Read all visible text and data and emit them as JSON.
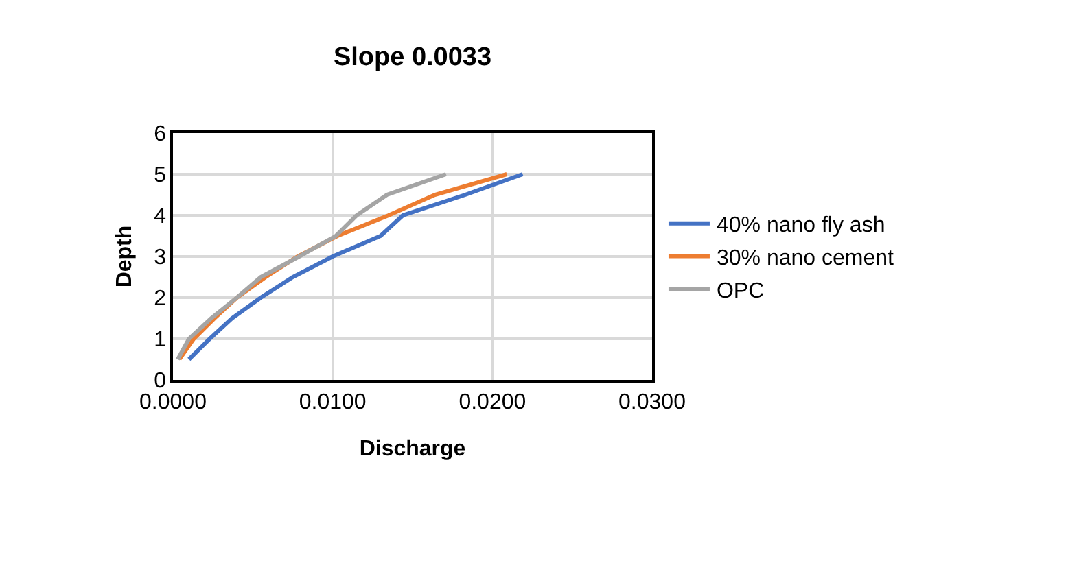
{
  "chart_data": {
    "type": "line",
    "title": "Slope 0.0033",
    "xlabel": "Discharge",
    "ylabel": "Depth",
    "xlim": [
      0,
      0.03
    ],
    "xticks": [
      {
        "value": 0,
        "label": "0.0000"
      },
      {
        "value": 0.01,
        "label": "0.0100"
      },
      {
        "value": 0.02,
        "label": "0.0200"
      },
      {
        "value": 0.03,
        "label": "0.0300"
      }
    ],
    "ylim": [
      0,
      6
    ],
    "yticks": [
      0,
      1,
      2,
      3,
      4,
      5,
      6
    ],
    "grid": true,
    "legend": "right",
    "marker": "none",
    "series": [
      {
        "name": "40% nano fly ash",
        "color": "#4472c4",
        "x": [
          0.001,
          0.0023,
          0.0037,
          0.0055,
          0.0075,
          0.01,
          0.013,
          0.0144,
          0.0183,
          0.0219
        ],
        "values": [
          0.5,
          1,
          1.5,
          2,
          2.5,
          3,
          3.5,
          4,
          4.5,
          5
        ]
      },
      {
        "name": "30% nano cement",
        "color": "#ed7d31",
        "x": [
          0.0004,
          0.0013,
          0.0026,
          0.004,
          0.0058,
          0.0078,
          0.0103,
          0.0135,
          0.0164,
          0.0209
        ],
        "values": [
          0.5,
          1,
          1.5,
          2,
          2.5,
          3,
          3.5,
          4,
          4.5,
          5
        ]
      },
      {
        "name": "OPC",
        "color": "#a5a5a5",
        "x": [
          0.0003,
          0.001,
          0.0024,
          0.004,
          0.0055,
          0.0079,
          0.0102,
          0.0115,
          0.0134,
          0.0171
        ],
        "values": [
          0.5,
          1,
          1.5,
          2,
          2.5,
          3,
          3.5,
          4,
          4.5,
          5
        ]
      }
    ]
  }
}
